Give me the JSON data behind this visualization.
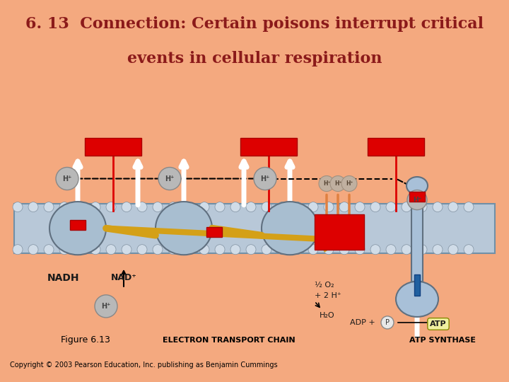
{
  "title_line1": "6. 13  Connection: Certain poisons interrupt critical",
  "title_line2": "events in cellular respiration",
  "title_color": "#8B1A1A",
  "title_bg": "#F4A97F",
  "title_fontsize": 16,
  "fig_bg": "#F4A97F",
  "diagram_bg": "#C8C8C8",
  "footer_text": "Copyright © 2003 Pearson Education, Inc. publishing as Benjamin Cummings",
  "figure_label": "Figure 6.13",
  "bottom_label_left": "ELECTRON TRANSPORT CHAIN",
  "bottom_label_right": "ATP SYNTHASE",
  "bottom_bar_color": "#CC0000",
  "membrane_color": "#B8C8D8",
  "membrane_border": "#7090A8",
  "poison_color": "#DD0000",
  "arrow_color": "#FFFFFF",
  "hplus_bg": "#B0B0B0",
  "hplus_text": "#555555",
  "nadh_text": "#1A1A1A",
  "gold_color": "#D4A017",
  "red_arrow_color": "#CC2200",
  "orange_arrow_color": "#E08040"
}
